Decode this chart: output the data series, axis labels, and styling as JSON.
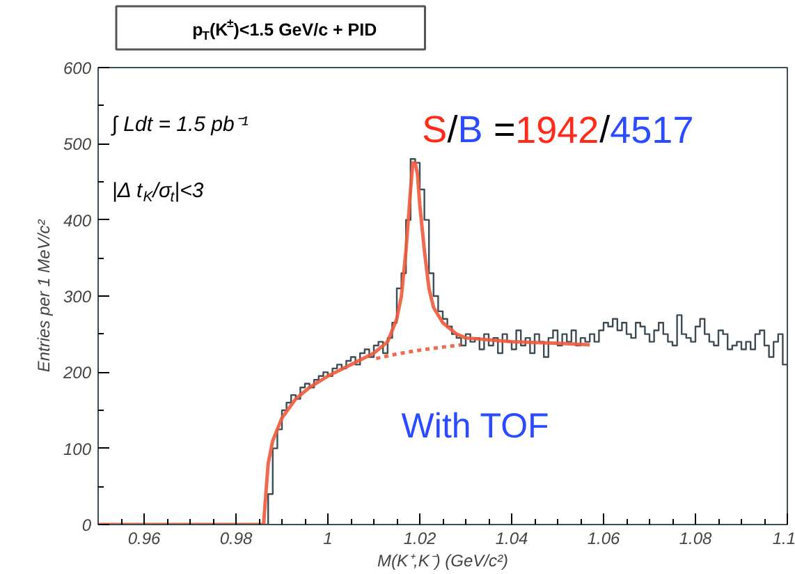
{
  "chart_data": {
    "type": "step",
    "title": "p$_{T}$(K$^{±}$)<1.5 GeV/c + PID",
    "xlabel": "M(K⁺,K⁻) (GeV/c²)",
    "ylabel": "Entries per 1 MeV/c²",
    "xlim": [
      0.95,
      1.1
    ],
    "xticks": [
      0.96,
      0.98,
      1,
      1.02,
      1.04,
      1.06,
      1.08,
      1.1
    ],
    "ylim": [
      0,
      600
    ],
    "yticks": [
      0,
      100,
      200,
      300,
      400,
      500,
      600
    ],
    "grid": false,
    "annotations": [
      "∫ Ldt = 1.5 pb⁻¹",
      "|Δ t$_{K}$/σ$_{t}$|<3",
      "S/B =1942/4517",
      "With TOF"
    ],
    "series": [
      {
        "color": "#3d4d55",
        "line_style": "solid",
        "x": [
          0.95,
          0.987,
          0.988,
          0.989,
          0.99,
          0.991,
          0.992,
          0.993,
          0.994,
          0.995,
          0.996,
          0.997,
          0.998,
          0.999,
          1.0,
          1.001,
          1.002,
          1.003,
          1.004,
          1.005,
          1.006,
          1.007,
          1.008,
          1.009,
          1.01,
          1.011,
          1.012,
          1.013,
          1.014,
          1.015,
          1.016,
          1.017,
          1.018,
          1.019,
          1.02,
          1.021,
          1.022,
          1.023,
          1.024,
          1.025,
          1.026,
          1.027,
          1.028,
          1.029,
          1.03,
          1.031,
          1.032,
          1.033,
          1.034,
          1.035,
          1.036,
          1.037,
          1.038,
          1.039,
          1.04,
          1.041,
          1.042,
          1.043,
          1.044,
          1.045,
          1.046,
          1.047,
          1.048,
          1.049,
          1.05,
          1.051,
          1.052,
          1.053,
          1.054,
          1.055,
          1.056,
          1.057,
          1.058,
          1.059,
          1.06,
          1.061,
          1.062,
          1.063,
          1.064,
          1.065,
          1.066,
          1.067,
          1.068,
          1.069,
          1.07,
          1.071,
          1.072,
          1.073,
          1.074,
          1.075,
          1.076,
          1.077,
          1.078,
          1.079,
          1.08,
          1.081,
          1.082,
          1.083,
          1.084,
          1.085,
          1.086,
          1.087,
          1.088,
          1.089,
          1.09,
          1.091,
          1.092,
          1.093,
          1.094,
          1.095,
          1.096,
          1.097,
          1.098,
          1.099,
          1.1
        ],
        "values": [
          0,
          40,
          100,
          125,
          150,
          160,
          170,
          165,
          180,
          185,
          180,
          190,
          195,
          200,
          195,
          205,
          210,
          205,
          215,
          220,
          210,
          225,
          230,
          220,
          235,
          240,
          225,
          245,
          265,
          310,
          330,
          400,
          480,
          475,
          440,
          400,
          330,
          300,
          280,
          270,
          260,
          250,
          245,
          235,
          250,
          240,
          245,
          230,
          250,
          235,
          245,
          225,
          250,
          240,
          230,
          255,
          235,
          245,
          225,
          250,
          240,
          220,
          245,
          255,
          235,
          250,
          240,
          255,
          235,
          245,
          240,
          250,
          240,
          255,
          265,
          260,
          270,
          255,
          265,
          250,
          245,
          265,
          260,
          250,
          240,
          255,
          265,
          250,
          240,
          235,
          275,
          250,
          245,
          240,
          260,
          270,
          250,
          240,
          235,
          255,
          250,
          230,
          235,
          240,
          230,
          240,
          230,
          250,
          255,
          235,
          220,
          240,
          250,
          210,
          210
        ]
      },
      {
        "type": "line",
        "color": "#ee5a3c",
        "line_style": "solid",
        "x": [
          0.95,
          0.986,
          0.9865,
          0.987,
          0.988,
          0.99,
          0.993,
          0.996,
          1.0,
          1.005,
          1.01,
          1.013,
          1.015,
          1.016,
          1.017,
          1.018,
          1.0185,
          1.019,
          1.0195,
          1.02,
          1.021,
          1.022,
          1.023,
          1.025,
          1.028,
          1.03,
          1.04,
          1.05,
          1.057
        ],
        "values": [
          0,
          0,
          40,
          80,
          110,
          140,
          165,
          180,
          195,
          210,
          225,
          240,
          270,
          300,
          360,
          440,
          475,
          475,
          460,
          420,
          360,
          310,
          285,
          265,
          250,
          245,
          240,
          238,
          236
        ]
      },
      {
        "type": "line",
        "color": "#ee5a3c",
        "line_style": "dotted",
        "x": [
          1.0105,
          1.015,
          1.02,
          1.025,
          1.029
        ],
        "values": [
          218,
          224,
          229,
          233,
          236
        ]
      }
    ]
  }
}
